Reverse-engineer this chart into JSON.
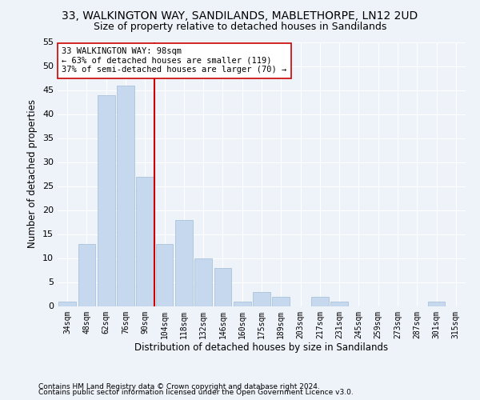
{
  "title1": "33, WALKINGTON WAY, SANDILANDS, MABLETHORPE, LN12 2UD",
  "title2": "Size of property relative to detached houses in Sandilands",
  "xlabel": "Distribution of detached houses by size in Sandilands",
  "ylabel": "Number of detached properties",
  "categories": [
    "34sqm",
    "48sqm",
    "62sqm",
    "76sqm",
    "90sqm",
    "104sqm",
    "118sqm",
    "132sqm",
    "146sqm",
    "160sqm",
    "175sqm",
    "189sqm",
    "203sqm",
    "217sqm",
    "231sqm",
    "245sqm",
    "259sqm",
    "273sqm",
    "287sqm",
    "301sqm",
    "315sqm"
  ],
  "values": [
    1,
    13,
    44,
    46,
    27,
    13,
    18,
    10,
    8,
    1,
    3,
    2,
    0,
    2,
    1,
    0,
    0,
    0,
    0,
    1,
    0
  ],
  "bar_color": "#c5d8ed",
  "bar_edge_color": "#a0bcd8",
  "vline_color": "#cc0000",
  "annotation_line1": "33 WALKINGTON WAY: 98sqm",
  "annotation_line2": "← 63% of detached houses are smaller (119)",
  "annotation_line3": "37% of semi-detached houses are larger (70) →",
  "annotation_box_color": "#ffffff",
  "annotation_box_edge": "#cc0000",
  "ylim": [
    0,
    55
  ],
  "yticks": [
    0,
    5,
    10,
    15,
    20,
    25,
    30,
    35,
    40,
    45,
    50,
    55
  ],
  "footnote1": "Contains HM Land Registry data © Crown copyright and database right 2024.",
  "footnote2": "Contains public sector information licensed under the Open Government Licence v3.0.",
  "background_color": "#eef2f9",
  "grid_color": "#ffffff",
  "title1_fontsize": 10,
  "title2_fontsize": 9,
  "xlabel_fontsize": 8.5,
  "ylabel_fontsize": 8.5,
  "footnote_fontsize": 6.5
}
